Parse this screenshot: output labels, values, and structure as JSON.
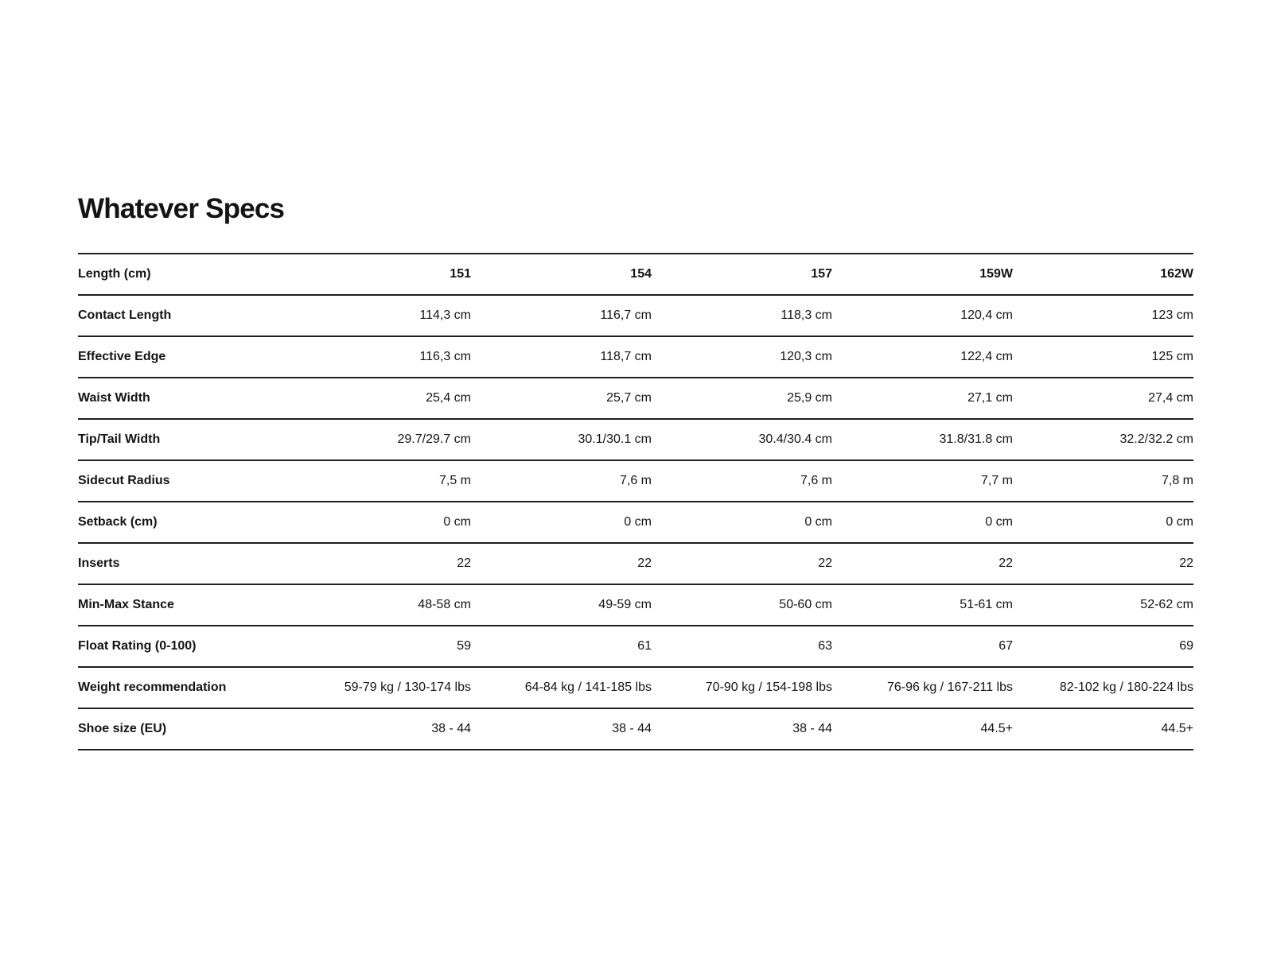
{
  "page": {
    "title": "Whatever Specs"
  },
  "table": {
    "header": {
      "label": "Length (cm)",
      "values": [
        "151",
        "154",
        "157",
        "159W",
        "162W"
      ]
    },
    "rows": [
      {
        "label": "Contact Length",
        "values": [
          "114,3 cm",
          "116,7 cm",
          "118,3 cm",
          "120,4 cm",
          "123 cm"
        ]
      },
      {
        "label": "Effective Edge",
        "values": [
          "116,3 cm",
          "118,7 cm",
          "120,3 cm",
          "122,4 cm",
          "125 cm"
        ]
      },
      {
        "label": "Waist Width",
        "values": [
          "25,4 cm",
          "25,7 cm",
          "25,9 cm",
          "27,1 cm",
          "27,4 cm"
        ]
      },
      {
        "label": "Tip/Tail Width",
        "values": [
          "29.7/29.7 cm",
          "30.1/30.1 cm",
          "30.4/30.4 cm",
          "31.8/31.8 cm",
          "32.2/32.2 cm"
        ]
      },
      {
        "label": "Sidecut Radius",
        "values": [
          "7,5 m",
          "7,6 m",
          "7,6 m",
          "7,7 m",
          "7,8 m"
        ]
      },
      {
        "label": "Setback (cm)",
        "values": [
          "0 cm",
          "0 cm",
          "0 cm",
          "0 cm",
          "0 cm"
        ]
      },
      {
        "label": "Inserts",
        "values": [
          "22",
          "22",
          "22",
          "22",
          "22"
        ]
      },
      {
        "label": "Min-Max Stance",
        "values": [
          "48-58 cm",
          "49-59 cm",
          "50-60 cm",
          "51-61 cm",
          "52-62 cm"
        ]
      },
      {
        "label": "Float Rating (0-100)",
        "values": [
          "59",
          "61",
          "63",
          "67",
          "69"
        ]
      },
      {
        "label": "Weight recommendation",
        "values": [
          "59-79 kg / 130-174 lbs",
          "64-84 kg / 141-185 lbs",
          "70-90 kg / 154-198 lbs",
          "76-96 kg / 167-211 lbs",
          "82-102 kg / 180-224 lbs"
        ]
      },
      {
        "label": "Shoe size (EU)",
        "values": [
          "38 - 44",
          "38 - 44",
          "38 - 44",
          "44.5+",
          "44.5+"
        ]
      }
    ]
  }
}
